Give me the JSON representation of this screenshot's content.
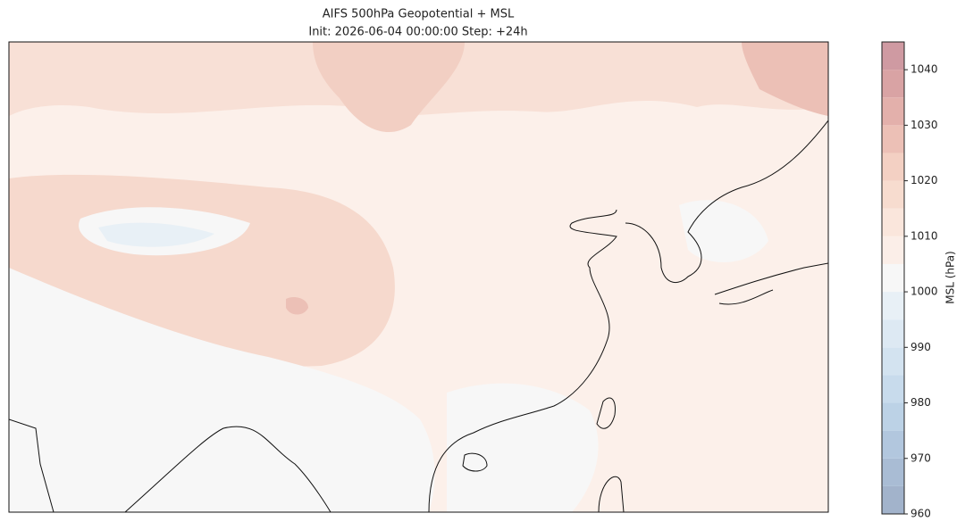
{
  "title": "AIFS 500hPa Geopotential + MSL",
  "subtitle": "Init: 2026-06-04 00:00:00 Step: +24h",
  "colorbar": {
    "label": "MSL (hPa)",
    "lim": [
      960,
      1045
    ],
    "ticks": [
      960,
      970,
      980,
      990,
      1000,
      1010,
      1020,
      1030,
      1040
    ],
    "levels": [
      960,
      965,
      970,
      975,
      980,
      985,
      990,
      995,
      1000,
      1005,
      1010,
      1015,
      1020,
      1025,
      1030,
      1035,
      1040,
      1045
    ],
    "colors": [
      "#a2b3cb",
      "#a9bcd4",
      "#b2c7de",
      "#bcd2e6",
      "#c8dbec",
      "#d3e3f0",
      "#dde9f3",
      "#e8f0f6",
      "#f7f7f7",
      "#fbeee8",
      "#fae6dc",
      "#f7dccf",
      "#f3d0c3",
      "#ecc0b6",
      "#e3b0ab",
      "#d9a3a4",
      "#cf9aa2"
    ]
  }
}
